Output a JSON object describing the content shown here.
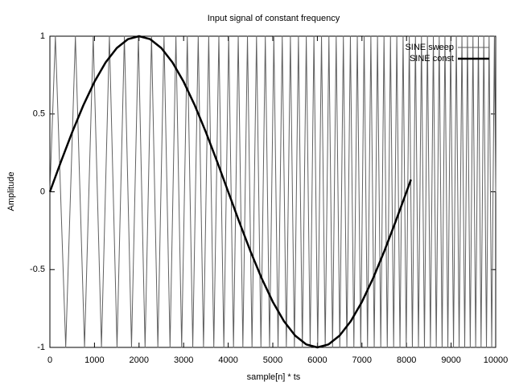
{
  "chart_data": {
    "type": "line",
    "title": "Input signal of constant frequency",
    "xlabel": "sample[n] * ts",
    "ylabel": "Amplitude",
    "xlim": [
      0,
      10000
    ],
    "ylim": [
      -1,
      1
    ],
    "xticks": [
      0,
      1000,
      2000,
      3000,
      4000,
      5000,
      6000,
      7000,
      8000,
      9000,
      10000
    ],
    "yticks": [
      -1,
      -0.5,
      0,
      0.5,
      1
    ],
    "grid": false,
    "legend": "top-right",
    "series": [
      {
        "name": "SINE sweep",
        "color": "#606060",
        "width": 1,
        "x": [
          0,
          123,
          355,
          572,
          777,
          972,
          1157,
          1335,
          1506,
          1671,
          1831,
          1985,
          2135,
          2280,
          2422,
          2560,
          2695,
          2827,
          2956,
          3082,
          3205,
          3327,
          3446,
          3563,
          3677,
          3790,
          3902,
          4011,
          4119,
          4225,
          4329,
          4432,
          4534,
          4635,
          4734,
          4832,
          4928,
          5024,
          5118,
          5212,
          5304,
          5395,
          5485,
          5575,
          5663,
          5751,
          5838,
          5923,
          6008,
          6093,
          6176,
          6259,
          6341,
          6422,
          6503,
          6583,
          6662,
          6741,
          6819,
          6896,
          6973,
          7049,
          7125,
          7200,
          7275,
          7349,
          7422,
          7495,
          7568,
          7640,
          7711,
          7782,
          7853,
          7923,
          7993,
          8062,
          8131,
          8200,
          8268,
          8335,
          8402,
          8469,
          8536,
          8602,
          8667,
          8733,
          8798,
          8862,
          8927,
          8990,
          9054,
          9117,
          9180,
          9243,
          9305,
          9367,
          9429,
          9490,
          9551,
          9612,
          9672,
          9733,
          9793,
          9852,
          9911,
          9971,
          10000
        ],
        "values": [
          0,
          1,
          -1,
          1,
          -1,
          1,
          -1,
          1,
          -1,
          1,
          -1,
          1,
          -1,
          1,
          -1,
          1,
          -1,
          1,
          -1,
          1,
          -1,
          1,
          -1,
          1,
          -1,
          1,
          -1,
          1,
          -1,
          1,
          -1,
          1,
          -1,
          1,
          -1,
          1,
          -1,
          1,
          -1,
          1,
          -1,
          1,
          -1,
          1,
          -1,
          1,
          -1,
          1,
          -1,
          1,
          -1,
          1,
          -1,
          1,
          -1,
          1,
          -1,
          1,
          -1,
          1,
          -1,
          1,
          -1,
          1,
          -1,
          1,
          -1,
          1,
          -1,
          1,
          -1,
          1,
          -1,
          1,
          -1,
          1,
          -1,
          1,
          -1,
          1,
          -1,
          1,
          -1,
          1,
          -1,
          1,
          -1,
          1,
          -1,
          1,
          -1,
          1,
          -1,
          1,
          -1,
          1,
          -1,
          1,
          -1,
          1,
          -1,
          1,
          -1,
          1,
          -1,
          1,
          0
        ]
      },
      {
        "name": "SINE const",
        "color": "#000000",
        "width": 2.5,
        "x": [
          0,
          250,
          500,
          750,
          1000,
          1250,
          1500,
          1750,
          2000,
          2250,
          2500,
          2750,
          3000,
          3250,
          3500,
          3750,
          4000,
          4250,
          4500,
          4750,
          5000,
          5250,
          5500,
          5750,
          6000,
          6250,
          6500,
          6750,
          7000,
          7250,
          7500,
          7750,
          8000,
          8100
        ],
        "values": [
          0,
          0.1951,
          0.3827,
          0.5556,
          0.7071,
          0.8315,
          0.9239,
          0.9808,
          1,
          0.9808,
          0.9239,
          0.8315,
          0.7071,
          0.5556,
          0.3827,
          0.1951,
          0,
          -0.1951,
          -0.3827,
          -0.5556,
          -0.7071,
          -0.8315,
          -0.9239,
          -0.9808,
          -1,
          -0.9808,
          -0.9239,
          -0.8315,
          -0.7071,
          -0.5556,
          -0.3827,
          -0.1951,
          0,
          0.0785
        ]
      }
    ]
  }
}
